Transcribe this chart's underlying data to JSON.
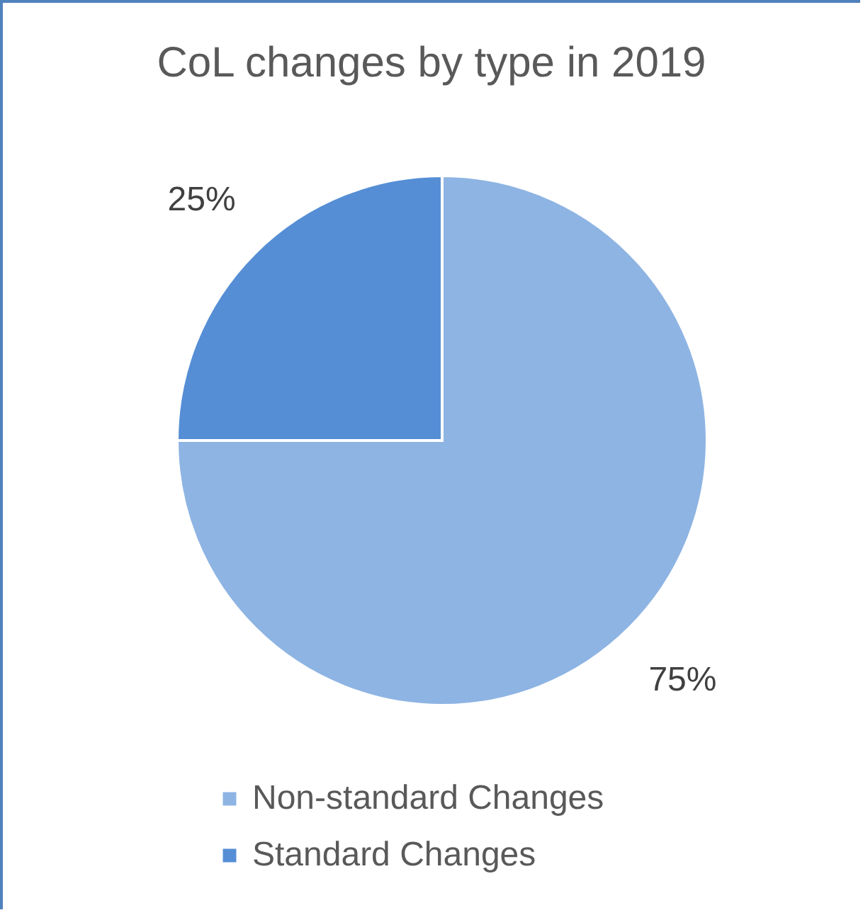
{
  "chart_data": {
    "type": "pie",
    "title": "CoL changes by type in 2019",
    "categories": [
      "Non-standard Changes",
      "Standard Changes"
    ],
    "values": [
      75,
      25
    ],
    "colors": [
      "#8eb4e3",
      "#558ed5"
    ],
    "value_labels": [
      "75%",
      "25%"
    ],
    "legend": "bottom"
  }
}
